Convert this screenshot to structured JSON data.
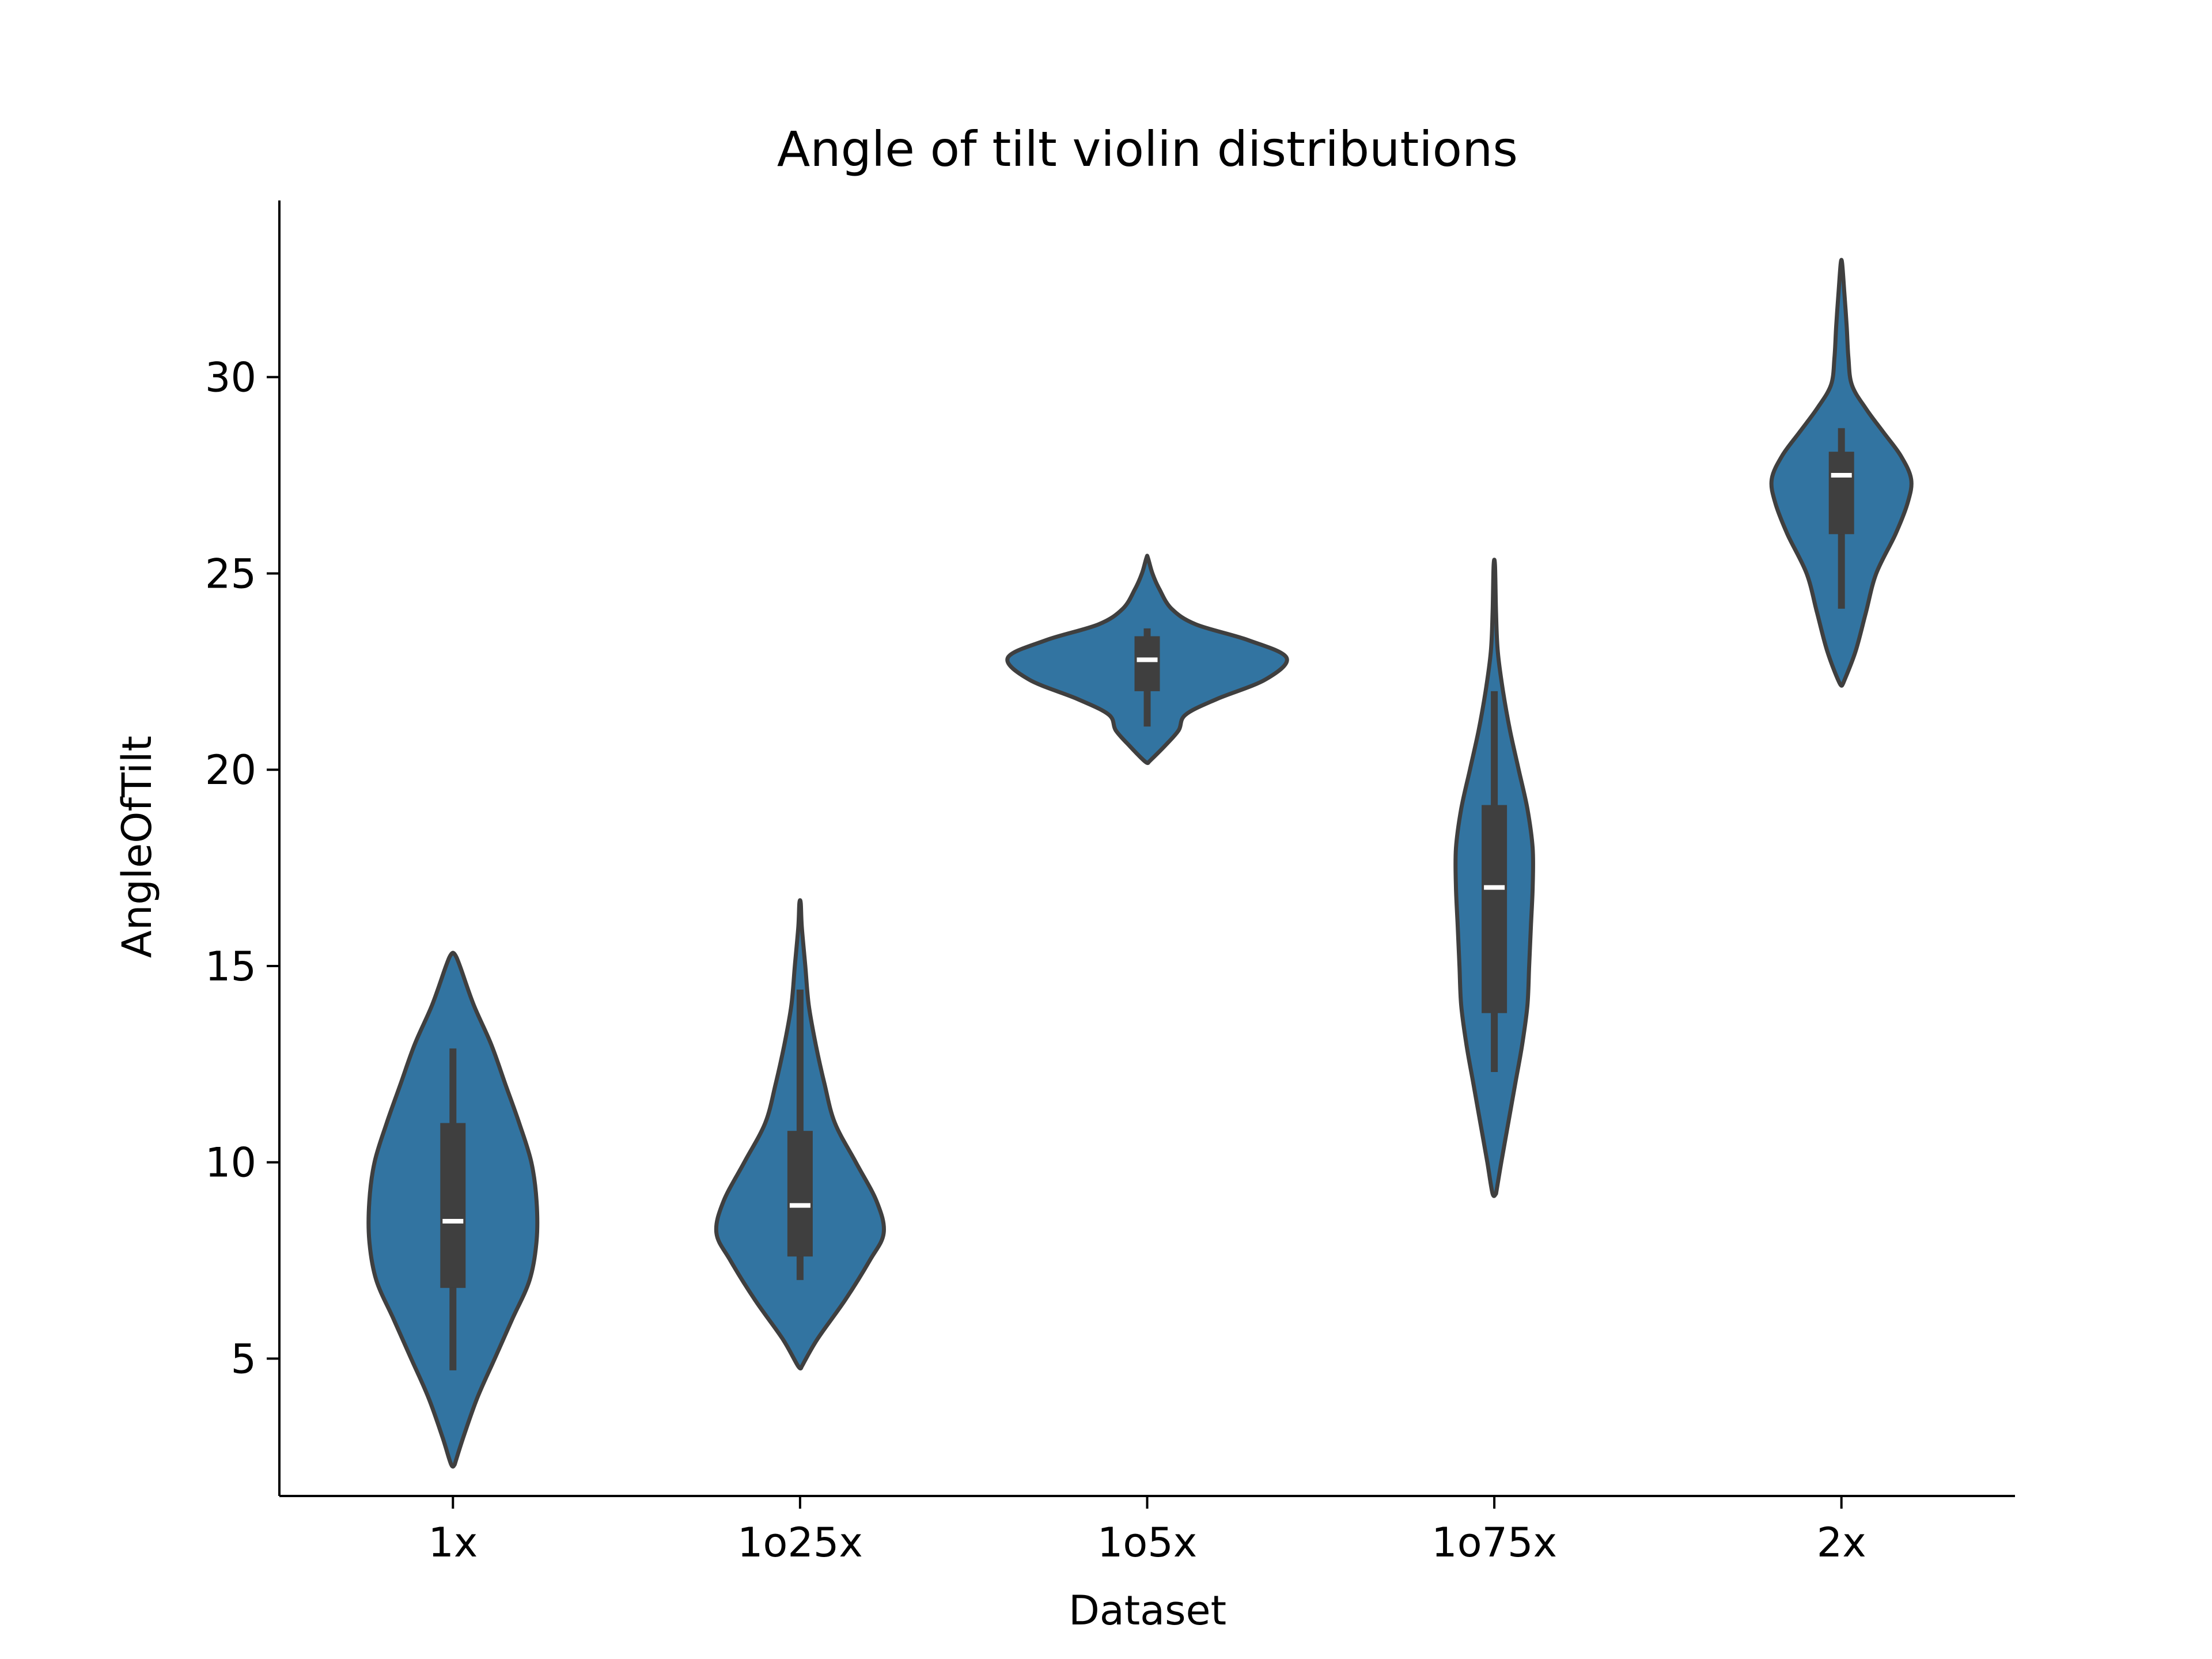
{
  "chart_data": {
    "type": "violin",
    "title": "Angle of tilt violin distributions",
    "xlabel": "Dataset",
    "ylabel": "AngleOfTilt",
    "categories": [
      "1x",
      "1o25x",
      "1o5x",
      "1o75x",
      "2x"
    ],
    "ylim": [
      1.5,
      34.5
    ],
    "yticks": [
      5,
      10,
      15,
      20,
      25,
      30
    ],
    "grid": false,
    "colors": {
      "fill": "#3274a1",
      "edge": "#3f3f3f",
      "box": "#3f3f3f",
      "median": "#ffffff"
    },
    "violins": [
      {
        "category": "1x",
        "median": 8.5,
        "q1": 6.8,
        "q3": 11.0,
        "whisker_low": 4.7,
        "whisker_high": 12.9,
        "density": [
          [
            2.3,
            0.005
          ],
          [
            3.0,
            0.03
          ],
          [
            4.0,
            0.07
          ],
          [
            5.0,
            0.12
          ],
          [
            6.0,
            0.17
          ],
          [
            7.0,
            0.22
          ],
          [
            8.0,
            0.24
          ],
          [
            9.0,
            0.24
          ],
          [
            10.0,
            0.225
          ],
          [
            11.0,
            0.19
          ],
          [
            12.0,
            0.15
          ],
          [
            13.0,
            0.11
          ],
          [
            14.0,
            0.06
          ],
          [
            15.0,
            0.02
          ],
          [
            15.3,
            0.005
          ]
        ]
      },
      {
        "category": "1o25x",
        "median": 8.9,
        "q1": 7.6,
        "q3": 10.8,
        "whisker_low": 7.0,
        "whisker_high": 14.4,
        "density": [
          [
            4.8,
            0.005
          ],
          [
            5.5,
            0.05
          ],
          [
            6.5,
            0.13
          ],
          [
            7.5,
            0.2
          ],
          [
            8.2,
            0.24
          ],
          [
            9.0,
            0.22
          ],
          [
            10.0,
            0.16
          ],
          [
            11.0,
            0.1
          ],
          [
            12.0,
            0.07
          ],
          [
            13.0,
            0.045
          ],
          [
            14.0,
            0.025
          ],
          [
            15.0,
            0.015
          ],
          [
            16.0,
            0.005
          ],
          [
            16.6,
            0.002
          ]
        ]
      },
      {
        "category": "1o5x",
        "median": 22.8,
        "q1": 22.0,
        "q3": 23.4,
        "whisker_low": 21.1,
        "whisker_high": 23.6,
        "density": [
          [
            20.2,
            0.005
          ],
          [
            20.6,
            0.05
          ],
          [
            21.0,
            0.09
          ],
          [
            21.4,
            0.11
          ],
          [
            21.8,
            0.2
          ],
          [
            22.3,
            0.34
          ],
          [
            22.85,
            0.4
          ],
          [
            23.3,
            0.29
          ],
          [
            23.7,
            0.14
          ],
          [
            24.1,
            0.07
          ],
          [
            24.6,
            0.035
          ],
          [
            25.0,
            0.015
          ],
          [
            25.4,
            0.002
          ]
        ]
      },
      {
        "category": "1o75x",
        "median": 17.0,
        "q1": 13.8,
        "q3": 19.1,
        "whisker_low": 12.3,
        "whisker_high": 22.0,
        "density": [
          [
            9.2,
            0.005
          ],
          [
            10.0,
            0.02
          ],
          [
            11.0,
            0.04
          ],
          [
            12.0,
            0.06
          ],
          [
            13.0,
            0.08
          ],
          [
            14.0,
            0.095
          ],
          [
            15.0,
            0.1
          ],
          [
            16.0,
            0.105
          ],
          [
            17.0,
            0.11
          ],
          [
            18.0,
            0.11
          ],
          [
            19.0,
            0.095
          ],
          [
            20.0,
            0.07
          ],
          [
            21.0,
            0.045
          ],
          [
            22.0,
            0.025
          ],
          [
            23.0,
            0.01
          ],
          [
            24.0,
            0.005
          ],
          [
            25.2,
            0.002
          ]
        ]
      },
      {
        "category": "2x",
        "median": 27.5,
        "q1": 26.0,
        "q3": 28.1,
        "whisker_low": 24.1,
        "whisker_high": 28.7,
        "density": [
          [
            22.2,
            0.005
          ],
          [
            23.0,
            0.04
          ],
          [
            24.0,
            0.07
          ],
          [
            25.0,
            0.1
          ],
          [
            26.0,
            0.155
          ],
          [
            26.8,
            0.19
          ],
          [
            27.4,
            0.2
          ],
          [
            28.0,
            0.17
          ],
          [
            28.6,
            0.12
          ],
          [
            29.2,
            0.07
          ],
          [
            29.8,
            0.03
          ],
          [
            30.5,
            0.02
          ],
          [
            31.3,
            0.015
          ],
          [
            32.2,
            0.008
          ],
          [
            32.9,
            0.002
          ]
        ]
      }
    ]
  }
}
